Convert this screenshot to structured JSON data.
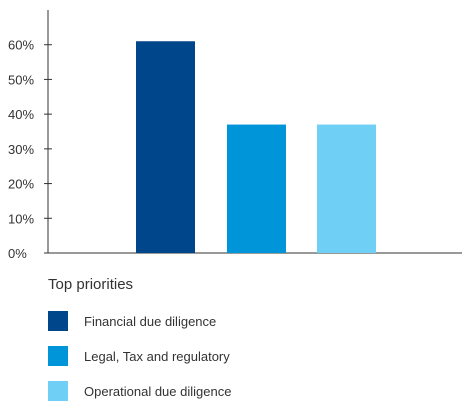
{
  "chart_data": {
    "type": "bar",
    "categories": [
      "Financial due diligence",
      "Legal, Tax and regulatory",
      "Operational due diligence"
    ],
    "values": [
      61,
      37,
      37
    ],
    "colors": [
      "#00468b",
      "#0095d9",
      "#6fcff5"
    ],
    "ylim": [
      0,
      70
    ],
    "yticks": [
      0,
      10,
      20,
      30,
      40,
      50,
      60
    ],
    "ytick_labels": [
      "0%",
      "10%",
      "20%",
      "30%",
      "40%",
      "50%",
      "60%"
    ],
    "grid": false,
    "legend_title": "Top priorities",
    "legend_position": "bottom-left"
  }
}
